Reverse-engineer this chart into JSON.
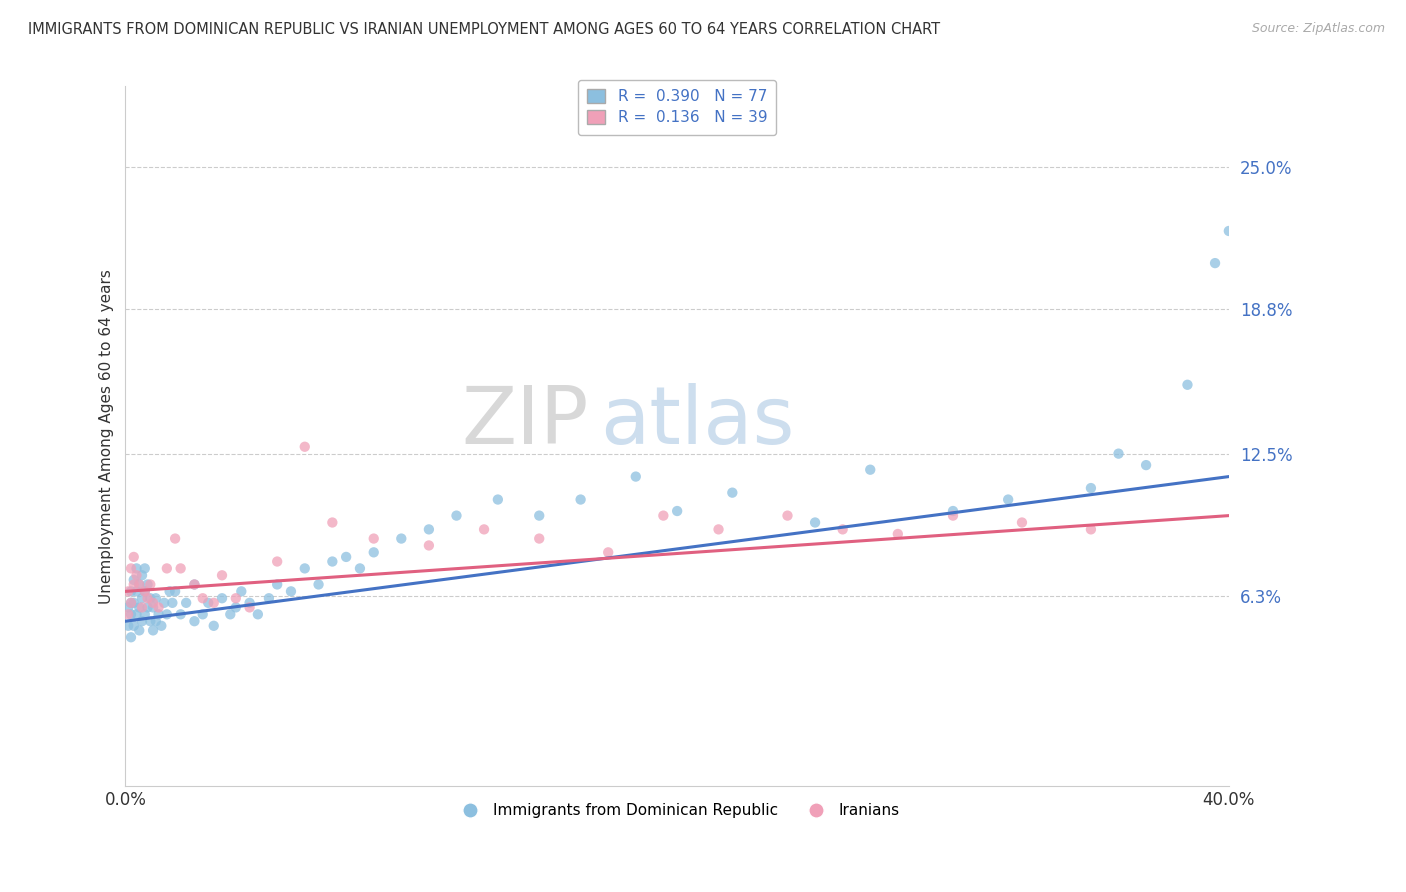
{
  "title": "IMMIGRANTS FROM DOMINICAN REPUBLIC VS IRANIAN UNEMPLOYMENT AMONG AGES 60 TO 64 YEARS CORRELATION CHART",
  "source": "Source: ZipAtlas.com",
  "ylabel": "Unemployment Among Ages 60 to 64 years",
  "xlim": [
    0,
    0.4
  ],
  "ylim": [
    -0.02,
    0.285
  ],
  "ytick_positions": [
    0.063,
    0.125,
    0.188,
    0.25
  ],
  "ytick_labels": [
    "6.3%",
    "12.5%",
    "18.8%",
    "25.0%"
  ],
  "blue_color": "#8cbfdf",
  "pink_color": "#f0a0b8",
  "blue_line_color": "#4472c4",
  "pink_line_color": "#e06080",
  "R_blue": 0.39,
  "N_blue": 77,
  "R_pink": 0.136,
  "N_pink": 39,
  "legend_label_blue": "Immigrants from Dominican Republic",
  "legend_label_pink": "Iranians",
  "watermark_zip": "ZIP",
  "watermark_atlas": "atlas",
  "background_color": "#ffffff",
  "grid_color": "#cccccc",
  "blue_scatter_x": [
    0.001,
    0.001,
    0.002,
    0.002,
    0.002,
    0.002,
    0.003,
    0.003,
    0.003,
    0.004,
    0.004,
    0.004,
    0.005,
    0.005,
    0.005,
    0.006,
    0.006,
    0.006,
    0.007,
    0.007,
    0.007,
    0.008,
    0.008,
    0.009,
    0.009,
    0.01,
    0.01,
    0.011,
    0.011,
    0.012,
    0.013,
    0.014,
    0.015,
    0.016,
    0.017,
    0.018,
    0.02,
    0.022,
    0.025,
    0.025,
    0.028,
    0.03,
    0.032,
    0.035,
    0.038,
    0.04,
    0.042,
    0.045,
    0.048,
    0.052,
    0.055,
    0.06,
    0.065,
    0.07,
    0.075,
    0.08,
    0.085,
    0.09,
    0.1,
    0.11,
    0.12,
    0.135,
    0.15,
    0.165,
    0.185,
    0.2,
    0.22,
    0.25,
    0.27,
    0.3,
    0.32,
    0.35,
    0.36,
    0.37,
    0.385,
    0.395,
    0.4
  ],
  "blue_scatter_y": [
    0.05,
    0.058,
    0.045,
    0.06,
    0.055,
    0.065,
    0.05,
    0.06,
    0.07,
    0.055,
    0.065,
    0.075,
    0.048,
    0.058,
    0.068,
    0.052,
    0.062,
    0.072,
    0.055,
    0.065,
    0.075,
    0.058,
    0.068,
    0.052,
    0.062,
    0.048,
    0.058,
    0.052,
    0.062,
    0.055,
    0.05,
    0.06,
    0.055,
    0.065,
    0.06,
    0.065,
    0.055,
    0.06,
    0.052,
    0.068,
    0.055,
    0.06,
    0.05,
    0.062,
    0.055,
    0.058,
    0.065,
    0.06,
    0.055,
    0.062,
    0.068,
    0.065,
    0.075,
    0.068,
    0.078,
    0.08,
    0.075,
    0.082,
    0.088,
    0.092,
    0.098,
    0.105,
    0.098,
    0.105,
    0.115,
    0.1,
    0.108,
    0.095,
    0.118,
    0.1,
    0.105,
    0.11,
    0.125,
    0.12,
    0.155,
    0.208,
    0.222
  ],
  "pink_scatter_x": [
    0.001,
    0.001,
    0.002,
    0.002,
    0.003,
    0.003,
    0.004,
    0.005,
    0.006,
    0.007,
    0.008,
    0.009,
    0.01,
    0.012,
    0.015,
    0.018,
    0.02,
    0.025,
    0.028,
    0.032,
    0.035,
    0.04,
    0.045,
    0.055,
    0.065,
    0.075,
    0.09,
    0.11,
    0.13,
    0.15,
    0.175,
    0.195,
    0.215,
    0.24,
    0.26,
    0.28,
    0.3,
    0.325,
    0.35
  ],
  "pink_scatter_y": [
    0.055,
    0.065,
    0.06,
    0.075,
    0.068,
    0.08,
    0.072,
    0.068,
    0.058,
    0.065,
    0.062,
    0.068,
    0.06,
    0.058,
    0.075,
    0.088,
    0.075,
    0.068,
    0.062,
    0.06,
    0.072,
    0.062,
    0.058,
    0.078,
    0.128,
    0.095,
    0.088,
    0.085,
    0.092,
    0.088,
    0.082,
    0.098,
    0.092,
    0.098,
    0.092,
    0.09,
    0.098,
    0.095,
    0.092
  ],
  "blue_trend_x0": 0.0,
  "blue_trend_y0": 0.052,
  "blue_trend_x1": 0.4,
  "blue_trend_y1": 0.115,
  "pink_trend_x0": 0.0,
  "pink_trend_y0": 0.065,
  "pink_trend_x1": 0.4,
  "pink_trend_y1": 0.098
}
